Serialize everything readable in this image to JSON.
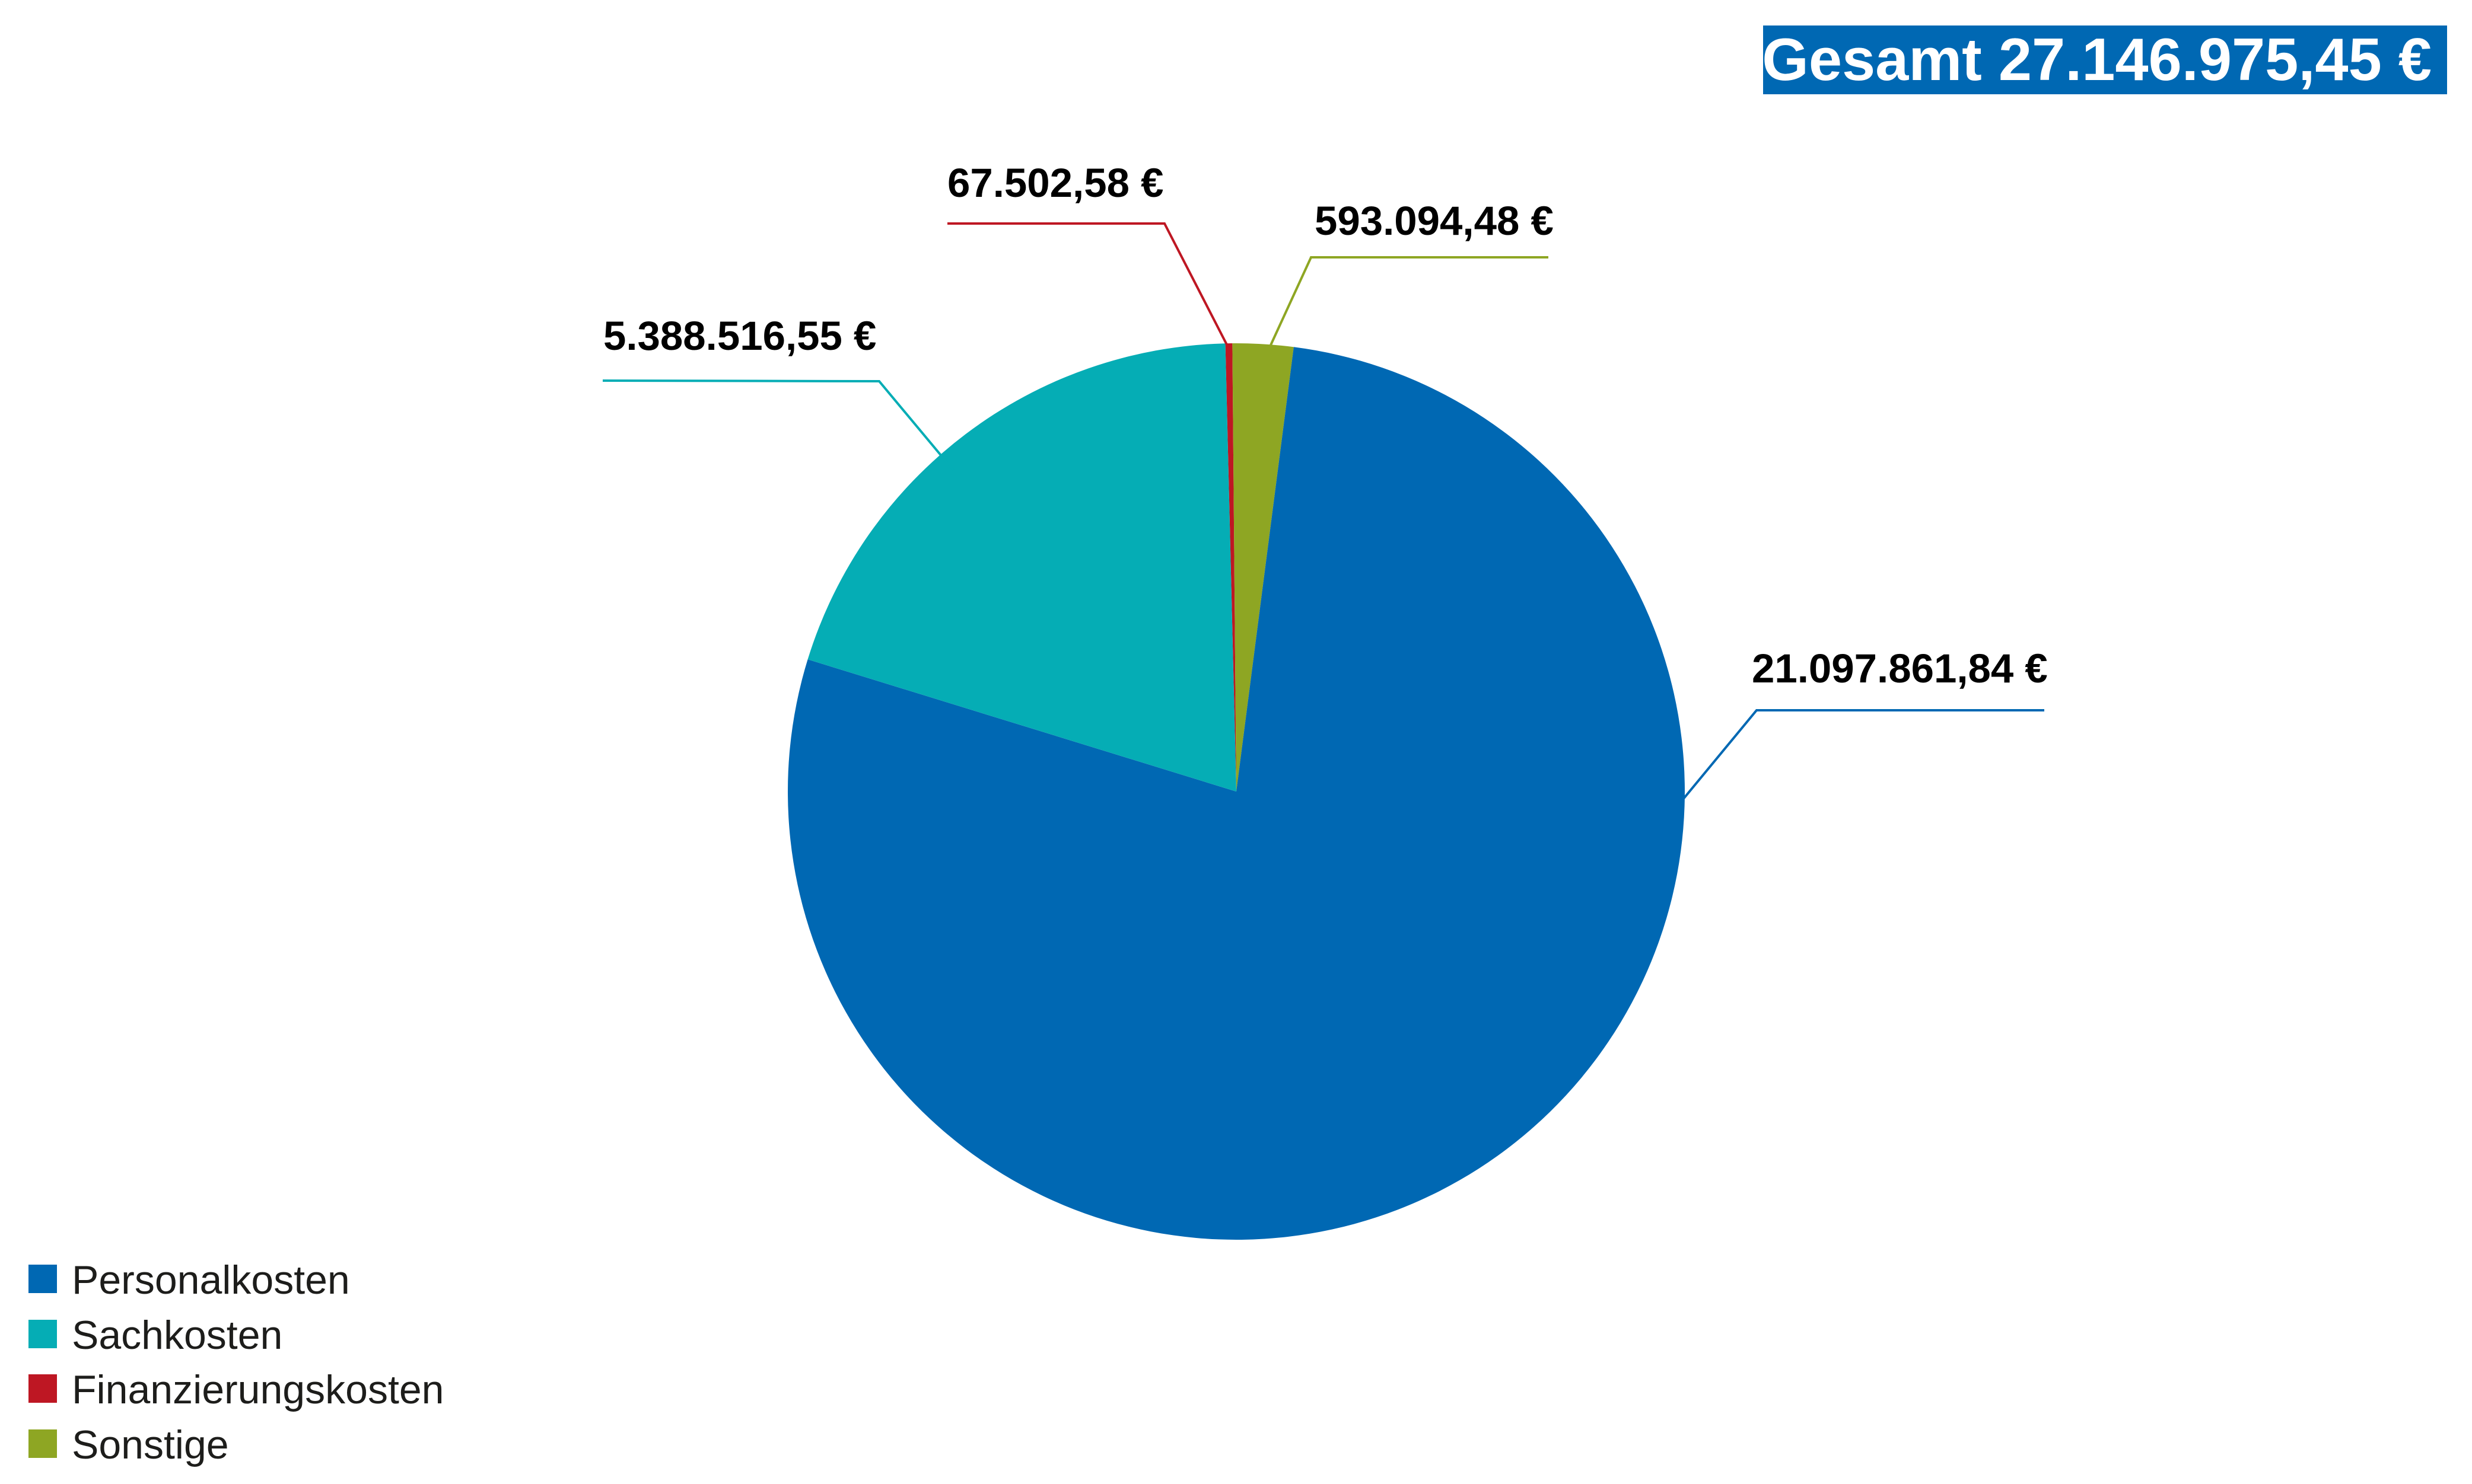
{
  "header": {
    "total_label": "Gesamt 27.146.975,45 €",
    "total_badge_color": "#0068B3"
  },
  "chart_data": {
    "type": "pie",
    "title": "Gesamt 27.146.975,45 €",
    "total": 27146975.45,
    "total_display": "27.146.975,45 €",
    "currency": "EUR",
    "categories": [
      "Personalkosten",
      "Sachkosten",
      "Finanzierungskosten",
      "Sonstige"
    ],
    "values": [
      21097861.84,
      5388516.55,
      67502.58,
      593094.48
    ],
    "value_labels": [
      "21.097.861,84 €",
      "5.388.516,55 €",
      "67.502,58 €",
      "593.094,48 €"
    ],
    "colors": [
      "#0068B3",
      "#05ADB5",
      "#BE1723",
      "#8EA623"
    ],
    "draw_order_clockwise_from_top": [
      "Finanzierungskosten",
      "Sonstige",
      "Personalkosten",
      "Sachkosten"
    ],
    "start_angle_deg": -1.4,
    "legend_position": "bottom-left",
    "data_labels": "outside with leader lines"
  },
  "labels": {
    "personal": "21.097.861,84 €",
    "sach": "5.388.516,55 €",
    "finanzierung": "67.502,58 €",
    "sonstige": "593.094,48 €"
  },
  "legend": {
    "items": [
      {
        "label": "Personalkosten",
        "color": "#0068B3"
      },
      {
        "label": "Sachkosten",
        "color": "#05ADB5"
      },
      {
        "label": "Finanzierungskosten",
        "color": "#BE1723"
      },
      {
        "label": "Sonstige",
        "color": "#8EA623"
      }
    ]
  }
}
